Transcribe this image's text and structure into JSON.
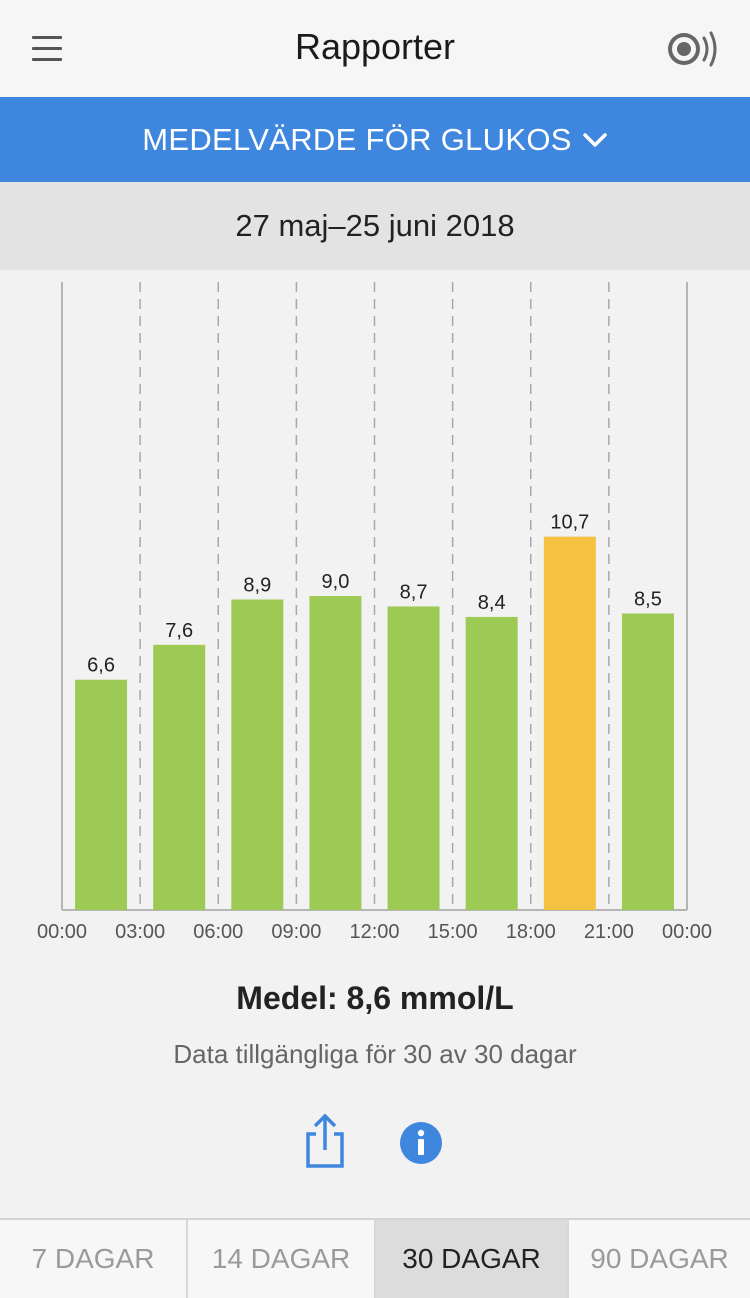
{
  "header": {
    "title": "Rapporter",
    "menu_icon": "hamburger-menu-icon",
    "sensor_icon": "sensor-scan-icon"
  },
  "report_selector": {
    "label": "MEDELVÄRDE FÖR GLUKOS",
    "icon": "chevron-down-icon"
  },
  "date_range": "27 maj–25 juni 2018",
  "colors": {
    "accent": "#3f86df",
    "in_range": "#9dca55",
    "high": "#f4c140"
  },
  "chart_data": {
    "type": "bar",
    "x_ticks": [
      "00:00",
      "03:00",
      "06:00",
      "09:00",
      "12:00",
      "15:00",
      "18:00",
      "21:00",
      "00:00"
    ],
    "values": [
      6.6,
      7.6,
      8.9,
      9.0,
      8.7,
      8.4,
      10.7,
      8.5
    ],
    "value_labels": [
      "6,6",
      "7,6",
      "8,9",
      "9,0",
      "8,7",
      "8,4",
      "10,7",
      "8,5"
    ],
    "bar_status": [
      "in_range",
      "in_range",
      "in_range",
      "in_range",
      "in_range",
      "in_range",
      "high",
      "in_range"
    ],
    "ylim": [
      0,
      18
    ],
    "grid": "vertical dashed"
  },
  "summary": {
    "mean": "Medel: 8,6 mmol/L",
    "availability": "Data tillgängliga för 30 av 30 dagar"
  },
  "actions": {
    "share_icon": "share-icon",
    "info_icon": "info-icon"
  },
  "period_tabs": [
    {
      "label": "7 DAGAR",
      "active": false
    },
    {
      "label": "14 DAGAR",
      "active": false
    },
    {
      "label": "30 DAGAR",
      "active": true
    },
    {
      "label": "90 DAGAR",
      "active": false
    }
  ]
}
